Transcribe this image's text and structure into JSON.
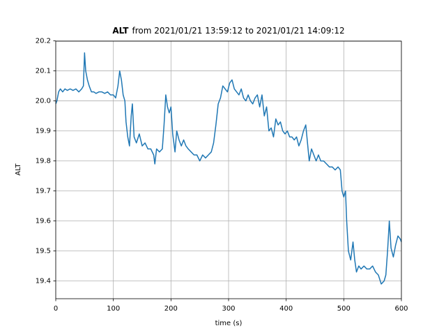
{
  "chart_data": {
    "type": "line",
    "title_variable": "ALT",
    "title": "from 2021/01/21 13:59:12 to 2021/01/21 14:09:12",
    "x_label": "time (s)",
    "y_label": "ALT",
    "xlim": [
      0,
      600
    ],
    "xticks": [
      0,
      100,
      200,
      300,
      400,
      500,
      600
    ],
    "ylim": [
      19.341,
      20.199
    ],
    "yticks": [
      19.4,
      19.5,
      19.6,
      19.7,
      19.8,
      19.9,
      {
        "value": 20,
        "label": "20.0"
      },
      20.1,
      20.2
    ],
    "grid": true,
    "x": [
      0,
      2,
      5,
      8,
      12,
      16,
      20,
      25,
      30,
      35,
      40,
      45,
      48,
      50,
      52,
      55,
      58,
      62,
      66,
      70,
      75,
      80,
      85,
      90,
      95,
      100,
      104,
      108,
      111,
      114,
      117,
      120,
      122,
      125,
      128,
      131,
      133,
      136,
      140,
      145,
      150,
      155,
      160,
      165,
      170,
      172,
      175,
      180,
      185,
      188,
      191,
      194,
      197,
      200,
      203,
      207,
      210,
      214,
      218,
      222,
      226,
      230,
      235,
      240,
      245,
      250,
      255,
      260,
      265,
      270,
      274,
      278,
      282,
      286,
      290,
      294,
      298,
      302,
      306,
      310,
      314,
      318,
      322,
      326,
      330,
      334,
      338,
      342,
      346,
      350,
      354,
      358,
      362,
      366,
      370,
      374,
      378,
      382,
      386,
      390,
      394,
      398,
      402,
      406,
      410,
      414,
      418,
      422,
      426,
      430,
      434,
      437,
      440,
      444,
      448,
      452,
      456,
      460,
      465,
      470,
      475,
      480,
      485,
      490,
      494,
      497,
      500,
      503,
      505,
      508,
      512,
      516,
      519,
      522,
      526,
      530,
      535,
      540,
      545,
      550,
      555,
      560,
      565,
      570,
      573,
      576,
      579,
      582,
      586,
      590,
      594,
      598,
      600
    ],
    "series": [
      {
        "name": "ALT",
        "color": "#1f77b4",
        "values": [
          19.99,
          20.0,
          20.03,
          20.04,
          20.03,
          20.04,
          20.035,
          20.04,
          20.035,
          20.04,
          20.03,
          20.04,
          20.05,
          20.16,
          20.1,
          20.07,
          20.05,
          20.03,
          20.03,
          20.025,
          20.03,
          20.03,
          20.025,
          20.03,
          20.02,
          20.02,
          20.01,
          20.05,
          20.1,
          20.07,
          20.02,
          20.0,
          19.93,
          19.88,
          19.85,
          19.95,
          19.99,
          19.88,
          19.86,
          19.89,
          19.85,
          19.86,
          19.84,
          19.84,
          19.82,
          19.79,
          19.84,
          19.83,
          19.84,
          19.92,
          20.02,
          19.98,
          19.96,
          19.98,
          19.89,
          19.83,
          19.9,
          19.87,
          19.85,
          19.87,
          19.85,
          19.84,
          19.83,
          19.82,
          19.82,
          19.8,
          19.82,
          19.81,
          19.82,
          19.83,
          19.86,
          19.92,
          19.99,
          20.01,
          20.05,
          20.04,
          20.03,
          20.06,
          20.07,
          20.04,
          20.03,
          20.02,
          20.04,
          20.01,
          20.0,
          20.02,
          20.0,
          19.99,
          20.01,
          20.02,
          19.98,
          20.02,
          19.95,
          19.98,
          19.9,
          19.91,
          19.88,
          19.94,
          19.92,
          19.93,
          19.9,
          19.89,
          19.9,
          19.88,
          19.88,
          19.87,
          19.88,
          19.85,
          19.87,
          19.9,
          19.92,
          19.86,
          19.8,
          19.84,
          19.82,
          19.8,
          19.82,
          19.8,
          19.8,
          19.79,
          19.78,
          19.78,
          19.77,
          19.78,
          19.77,
          19.7,
          19.68,
          19.7,
          19.6,
          19.5,
          19.47,
          19.53,
          19.47,
          19.43,
          19.45,
          19.44,
          19.45,
          19.44,
          19.44,
          19.45,
          19.43,
          19.42,
          19.39,
          19.4,
          19.42,
          19.5,
          19.6,
          19.51,
          19.48,
          19.52,
          19.55,
          19.54,
          19.53
        ]
      }
    ]
  }
}
